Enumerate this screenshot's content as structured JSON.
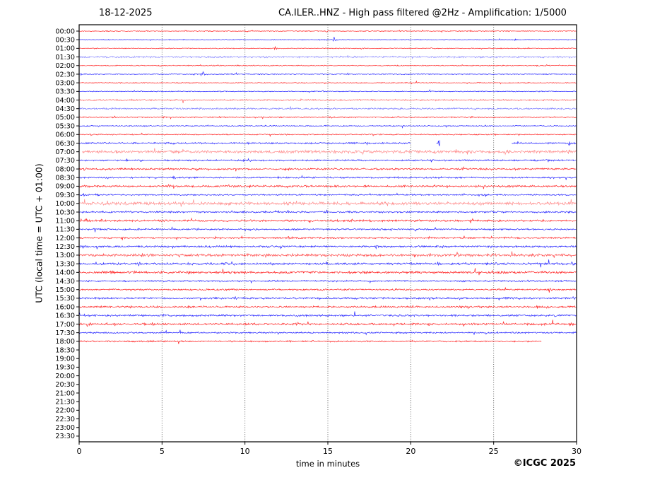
{
  "header": {
    "date": "18-12-2025",
    "title": "CA.ILER..HNZ - High pass filtered @2Hz - Amplification: 1/5000"
  },
  "footer": {
    "copyright": "©ICGC 2025"
  },
  "chart_data": {
    "type": "line",
    "subtype": "helicorder_day_seismogram",
    "title": "CA.ILER..HNZ - High pass filtered @2Hz - Amplification: 1/5000",
    "date": "18-12-2025",
    "station": "CA.ILER..HNZ",
    "filter": "High pass filtered @2Hz",
    "amplification": "1/5000",
    "xlabel": "time in minutes",
    "ylabel": "UTC (local time = UTC + 01:00)",
    "xlim": [
      0,
      30
    ],
    "x_ticks": [
      0,
      5,
      10,
      15,
      20,
      25,
      30
    ],
    "grid": {
      "vertical_dotted_at_minutes": [
        5,
        10,
        15,
        20,
        25
      ]
    },
    "colors": {
      "hour_trace": "#ff0000",
      "half_hour_trace": "#0000ff",
      "axes": "#000000"
    },
    "legend": "none",
    "minutes_per_row": 30,
    "last_data_row": "18:00",
    "last_data_minute": 27.9,
    "rows": [
      {
        "label": "00:00",
        "color": "red",
        "noise": 0.45,
        "events": [
          [
            6.4,
            0.6
          ],
          [
            10.1,
            0.6
          ],
          [
            14.9,
            0.7
          ],
          [
            19.3,
            0.5
          ],
          [
            25.9,
            0.5
          ]
        ]
      },
      {
        "label": "00:30",
        "color": "blue",
        "noise": 0.45,
        "events": [
          [
            15.35,
            2.3
          ],
          [
            26.3,
            1.1
          ]
        ]
      },
      {
        "label": "01:00",
        "color": "red",
        "noise": 0.45,
        "events": [
          [
            11.8,
            1.2
          ],
          [
            21.2,
            0.5
          ]
        ]
      },
      {
        "label": "01:30",
        "color": "blue",
        "noise": 0.95,
        "opacity": 0.45,
        "events": []
      },
      {
        "label": "02:00",
        "color": "red",
        "noise": 0.5,
        "events": [
          [
            4.8,
            0.5
          ],
          [
            17.4,
            0.4
          ]
        ]
      },
      {
        "label": "02:30",
        "color": "blue",
        "noise": 0.5,
        "events": [
          [
            7.45,
            2.4
          ],
          [
            16.2,
            0.9
          ]
        ]
      },
      {
        "label": "03:00",
        "color": "red",
        "noise": 0.5,
        "events": [
          [
            23.5,
            0.5
          ]
        ]
      },
      {
        "label": "03:30",
        "color": "blue",
        "noise": 0.5,
        "events": []
      },
      {
        "label": "04:00",
        "color": "red",
        "noise": 0.8,
        "opacity": 0.6,
        "events": [
          [
            27.9,
            0.9
          ]
        ]
      },
      {
        "label": "04:30",
        "color": "blue",
        "noise": 0.9,
        "opacity": 0.5,
        "events": []
      },
      {
        "label": "05:00",
        "color": "red",
        "noise": 0.6,
        "events": [
          [
            2.1,
            0.9
          ],
          [
            5.1,
            0.8
          ],
          [
            8.4,
            1.0
          ],
          [
            15.2,
            0.8
          ],
          [
            23.6,
            0.7
          ]
        ]
      },
      {
        "label": "05:30",
        "color": "blue",
        "noise": 0.55,
        "events": [
          [
            3.8,
            0.7
          ],
          [
            11.2,
            0.8
          ],
          [
            14.8,
            0.7
          ],
          [
            24.5,
            0.6
          ]
        ]
      },
      {
        "label": "06:00",
        "color": "red",
        "noise": 0.6,
        "events": [
          [
            5.3,
            0.8
          ],
          [
            12.5,
            0.7
          ],
          [
            17.7,
            0.8
          ],
          [
            26.5,
            0.6
          ]
        ]
      },
      {
        "label": "06:30",
        "color": "blue",
        "noise": 0.85,
        "segments": [
          [
            0,
            20.0
          ],
          [
            21.55,
            21.78
          ],
          [
            26.1,
            30
          ]
        ],
        "events": [
          [
            0.4,
            1.1
          ],
          [
            5.6,
            1.3
          ],
          [
            10.2,
            1.0
          ],
          [
            21.65,
            4.5
          ],
          [
            29.55,
            2.2
          ]
        ]
      },
      {
        "label": "07:00",
        "color": "red",
        "noise": 1.6,
        "opacity": 0.45,
        "segments": [
          [
            0.2,
            30
          ]
        ],
        "events": [
          [
            17.5,
            1.2
          ],
          [
            23.4,
            2.0
          ],
          [
            24.3,
            1.8
          ],
          [
            25.7,
            1.6
          ],
          [
            27.6,
            1.6
          ],
          [
            29.4,
            2.0
          ]
        ]
      },
      {
        "label": "07:30",
        "color": "blue",
        "noise": 0.85,
        "events": [
          [
            3.7,
            1.2
          ],
          [
            9.9,
            1.4
          ],
          [
            16.8,
            1.0
          ],
          [
            21.3,
            0.9
          ],
          [
            28.2,
            1.0
          ]
        ]
      },
      {
        "label": "08:00",
        "color": "red",
        "noise": 0.95,
        "events": [
          [
            0.3,
            1.4
          ],
          [
            1.6,
            1.2
          ],
          [
            2.6,
            1.1
          ],
          [
            7.1,
            1.0
          ],
          [
            12.4,
            0.9
          ],
          [
            19.0,
            1.0
          ],
          [
            23.1,
            1.0
          ],
          [
            26.2,
            1.0
          ]
        ]
      },
      {
        "label": "08:30",
        "color": "blue",
        "noise": 0.85,
        "events": [
          [
            5.7,
            1.3
          ],
          [
            9.5,
            1.0
          ],
          [
            14.1,
            1.0
          ],
          [
            19.2,
            1.2
          ],
          [
            21.6,
            1.3
          ],
          [
            28.5,
            1.0
          ]
        ]
      },
      {
        "label": "09:00",
        "color": "red",
        "noise": 1.05,
        "events": [
          [
            0.5,
            2.2
          ],
          [
            5.4,
            1.1
          ],
          [
            13.6,
            1.3
          ],
          [
            15.6,
            1.2
          ],
          [
            19.6,
            1.3
          ],
          [
            21.6,
            1.5
          ],
          [
            23.9,
            1.3
          ],
          [
            26.1,
            1.2
          ]
        ]
      },
      {
        "label": "09:30",
        "color": "blue",
        "noise": 0.75,
        "events": [
          [
            0.15,
            2.6
          ],
          [
            1.0,
            1.5
          ],
          [
            6.9,
            1.2
          ],
          [
            12.1,
            1.0
          ],
          [
            16.1,
            1.0
          ],
          [
            24.1,
            0.9
          ]
        ]
      },
      {
        "label": "10:00",
        "color": "red",
        "noise": 1.65,
        "opacity": 0.45,
        "events": [
          [
            6.2,
            1.2
          ],
          [
            13.1,
            1.5
          ],
          [
            18.6,
            1.3
          ],
          [
            21.6,
            1.5
          ],
          [
            26.1,
            1.3
          ]
        ]
      },
      {
        "label": "10:30",
        "color": "blue",
        "noise": 0.85,
        "events": [
          [
            2.8,
            1.0
          ],
          [
            9.2,
            0.9
          ],
          [
            16.1,
            1.0
          ],
          [
            24.8,
            2.0
          ],
          [
            29.5,
            1.2
          ]
        ]
      },
      {
        "label": "11:00",
        "color": "red",
        "noise": 1.05,
        "events": [
          [
            0.4,
            1.7
          ],
          [
            1.3,
            1.4
          ],
          [
            6.3,
            1.0
          ],
          [
            13.9,
            1.3
          ],
          [
            16.4,
            1.3
          ],
          [
            20.4,
            1.2
          ],
          [
            23.6,
            2.0
          ],
          [
            27.9,
            1.2
          ]
        ]
      },
      {
        "label": "11:30",
        "color": "blue",
        "noise": 0.85,
        "events": [
          [
            3.6,
            1.0
          ],
          [
            7.1,
            1.0
          ],
          [
            10.6,
            1.1
          ],
          [
            13.1,
            1.0
          ],
          [
            18.1,
            1.0
          ],
          [
            24.9,
            1.0
          ]
        ]
      },
      {
        "label": "12:00",
        "color": "red",
        "noise": 0.85,
        "events": [
          [
            2.6,
            1.0
          ],
          [
            8.2,
            0.9
          ],
          [
            12.6,
            1.2
          ],
          [
            15.3,
            1.2
          ],
          [
            21.1,
            0.9
          ],
          [
            25.6,
            1.0
          ]
        ]
      },
      {
        "label": "12:30",
        "color": "blue",
        "noise": 0.95,
        "events": [
          [
            0.4,
            1.1
          ],
          [
            12.1,
            1.6
          ],
          [
            13.5,
            1.3
          ],
          [
            17.9,
            1.0
          ],
          [
            21.9,
            1.2
          ],
          [
            28.1,
            0.9
          ]
        ]
      },
      {
        "label": "13:00",
        "color": "red",
        "noise": 1.45,
        "opacity": 0.7,
        "events": [
          [
            2.6,
            1.4
          ],
          [
            3.8,
            1.3
          ],
          [
            6.0,
            1.3
          ],
          [
            7.5,
            1.2
          ],
          [
            10.7,
            1.2
          ],
          [
            11.8,
            1.4
          ],
          [
            16.6,
            1.2
          ],
          [
            18.8,
            1.3
          ],
          [
            20.4,
            1.2
          ],
          [
            22.8,
            1.4
          ],
          [
            25.9,
            1.6
          ],
          [
            27.3,
            1.3
          ],
          [
            29.2,
            1.3
          ]
        ]
      },
      {
        "label": "13:30",
        "color": "blue",
        "noise": 1.15,
        "events": [
          [
            3.6,
            1.1
          ],
          [
            8.8,
            1.2
          ],
          [
            12.2,
            1.7
          ],
          [
            15.6,
            1.1
          ],
          [
            21.6,
            1.1
          ],
          [
            25.1,
            1.0
          ],
          [
            29.7,
            1.4
          ]
        ]
      },
      {
        "label": "14:00",
        "color": "red",
        "noise": 1.15,
        "events": [
          [
            1.4,
            1.6
          ],
          [
            1.9,
            1.5
          ],
          [
            3.2,
            1.3
          ],
          [
            6.0,
            1.2
          ],
          [
            10.0,
            1.1
          ],
          [
            12.4,
            1.1
          ],
          [
            17.1,
            1.1
          ],
          [
            21.1,
            1.1
          ],
          [
            25.6,
            1.4
          ],
          [
            27.9,
            1.1
          ]
        ]
      },
      {
        "label": "14:30",
        "color": "blue",
        "noise": 0.8,
        "events": [
          [
            2.9,
            0.9
          ],
          [
            5.1,
            0.9
          ],
          [
            9.6,
            0.9
          ],
          [
            15.1,
            0.9
          ],
          [
            18.6,
            0.9
          ],
          [
            23.1,
            0.9
          ],
          [
            27.1,
            0.9
          ]
        ]
      },
      {
        "label": "15:00",
        "color": "red",
        "noise": 0.8,
        "events": [
          [
            7.6,
            0.9
          ],
          [
            14.6,
            0.9
          ],
          [
            22.6,
            0.9
          ],
          [
            28.3,
            1.4
          ]
        ]
      },
      {
        "label": "15:30",
        "color": "blue",
        "noise": 0.95,
        "events": [
          [
            4.1,
            0.9
          ],
          [
            11.1,
            0.9
          ],
          [
            22.9,
            1.1
          ],
          [
            25.3,
            1.0
          ],
          [
            29.8,
            1.4
          ]
        ]
      },
      {
        "label": "16:00",
        "color": "red",
        "noise": 1.0,
        "events": [
          [
            3.1,
            1.0
          ],
          [
            6.6,
            1.1
          ],
          [
            12.1,
            0.9
          ],
          [
            20.1,
            0.9
          ],
          [
            27.6,
            1.2
          ],
          [
            28.2,
            2.4
          ]
        ]
      },
      {
        "label": "16:30",
        "color": "blue",
        "noise": 1.0,
        "events": [
          [
            5.1,
            0.9
          ],
          [
            14.3,
            1.1
          ],
          [
            19.6,
            1.1
          ],
          [
            25.4,
            1.4
          ],
          [
            28.7,
            1.2
          ]
        ]
      },
      {
        "label": "17:00",
        "color": "red",
        "noise": 1.05,
        "events": [
          [
            0.5,
            2.4
          ],
          [
            1.7,
            1.3
          ],
          [
            4.4,
            2.2
          ],
          [
            10.6,
            1.1
          ],
          [
            21.1,
            1.1
          ],
          [
            27.9,
            2.3
          ],
          [
            29.6,
            2.1
          ]
        ]
      },
      {
        "label": "17:30",
        "color": "blue",
        "noise": 0.8,
        "events": [
          [
            4.9,
            1.2
          ],
          [
            11.1,
            0.9
          ],
          [
            19.1,
            0.9
          ],
          [
            26.1,
            0.9
          ]
        ]
      },
      {
        "label": "18:00",
        "color": "red",
        "noise": 0.8,
        "segments": [
          [
            0,
            27.9
          ]
        ],
        "events": [
          [
            4.1,
            0.9
          ],
          [
            9.1,
            0.9
          ],
          [
            14.1,
            0.8
          ],
          [
            20.1,
            0.7
          ]
        ]
      },
      {
        "label": "18:30",
        "color": "blue",
        "noise": 0,
        "segments": [],
        "events": []
      },
      {
        "label": "19:00",
        "color": "red",
        "noise": 0,
        "segments": [],
        "events": []
      },
      {
        "label": "19:30",
        "color": "blue",
        "noise": 0,
        "segments": [],
        "events": []
      },
      {
        "label": "20:00",
        "color": "red",
        "noise": 0,
        "segments": [],
        "events": []
      },
      {
        "label": "20:30",
        "color": "blue",
        "noise": 0,
        "segments": [],
        "events": []
      },
      {
        "label": "21:00",
        "color": "red",
        "noise": 0,
        "segments": [],
        "events": []
      },
      {
        "label": "21:30",
        "color": "blue",
        "noise": 0,
        "segments": [],
        "events": []
      },
      {
        "label": "22:00",
        "color": "red",
        "noise": 0,
        "segments": [],
        "events": []
      },
      {
        "label": "22:30",
        "color": "blue",
        "noise": 0,
        "segments": [],
        "events": []
      },
      {
        "label": "23:00",
        "color": "red",
        "noise": 0,
        "segments": [],
        "events": []
      },
      {
        "label": "23:30",
        "color": "blue",
        "noise": 0,
        "segments": [],
        "events": []
      }
    ]
  }
}
